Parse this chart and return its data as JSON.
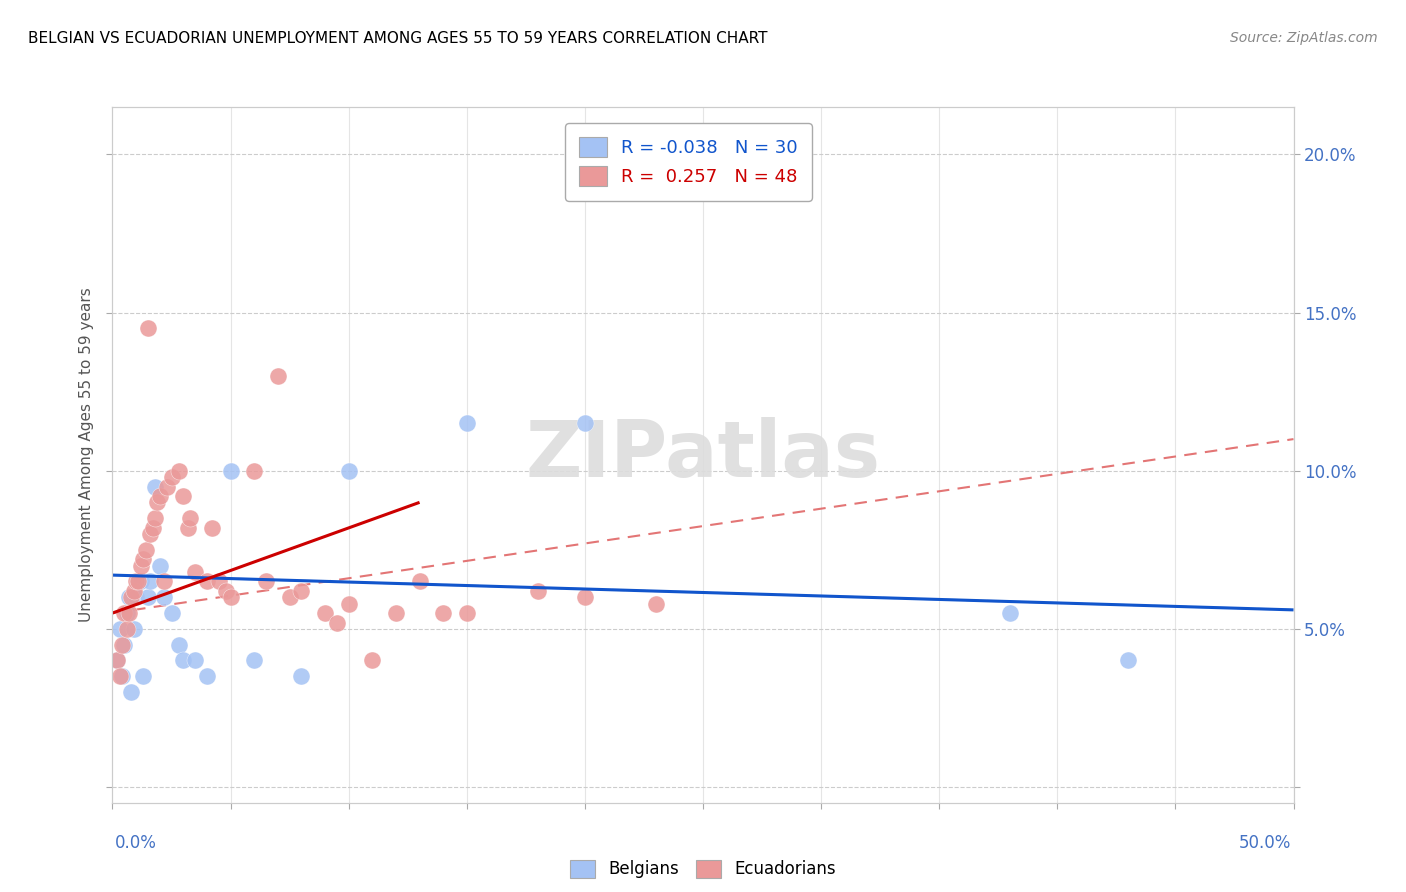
{
  "title": "BELGIAN VS ECUADORIAN UNEMPLOYMENT AMONG AGES 55 TO 59 YEARS CORRELATION CHART",
  "source": "Source: ZipAtlas.com",
  "ylabel": "Unemployment Among Ages 55 to 59 years",
  "xlim": [
    0,
    0.5
  ],
  "ylim": [
    -0.005,
    0.215
  ],
  "legend_blue_r": "R = -0.038",
  "legend_blue_n": "N = 30",
  "legend_pink_r": "R =  0.257",
  "legend_pink_n": "N = 48",
  "blue_color": "#a4c2f4",
  "pink_color": "#ea9999",
  "blue_line_color": "#1155cc",
  "pink_line_color": "#cc0000",
  "blue_dash_color": "#a4c2f4",
  "pink_dash_color": "#e06666",
  "watermark": "ZIPatlas",
  "belgians_x": [
    0.002,
    0.003,
    0.004,
    0.005,
    0.006,
    0.007,
    0.008,
    0.009,
    0.01,
    0.011,
    0.012,
    0.013,
    0.015,
    0.016,
    0.018,
    0.02,
    0.022,
    0.025,
    0.028,
    0.03,
    0.035,
    0.04,
    0.05,
    0.06,
    0.08,
    0.1,
    0.15,
    0.2,
    0.38,
    0.43
  ],
  "belgians_y": [
    0.04,
    0.05,
    0.035,
    0.045,
    0.055,
    0.06,
    0.03,
    0.05,
    0.06,
    0.065,
    0.065,
    0.035,
    0.06,
    0.065,
    0.095,
    0.07,
    0.06,
    0.055,
    0.045,
    0.04,
    0.04,
    0.035,
    0.1,
    0.04,
    0.035,
    0.1,
    0.115,
    0.115,
    0.055,
    0.04
  ],
  "ecuadorians_x": [
    0.002,
    0.003,
    0.004,
    0.005,
    0.006,
    0.007,
    0.008,
    0.009,
    0.01,
    0.011,
    0.012,
    0.013,
    0.014,
    0.015,
    0.016,
    0.017,
    0.018,
    0.019,
    0.02,
    0.022,
    0.023,
    0.025,
    0.028,
    0.03,
    0.032,
    0.033,
    0.035,
    0.04,
    0.042,
    0.045,
    0.048,
    0.05,
    0.06,
    0.065,
    0.07,
    0.075,
    0.08,
    0.09,
    0.095,
    0.1,
    0.11,
    0.12,
    0.13,
    0.14,
    0.15,
    0.18,
    0.2,
    0.23
  ],
  "ecuadorians_y": [
    0.04,
    0.035,
    0.045,
    0.055,
    0.05,
    0.055,
    0.06,
    0.062,
    0.065,
    0.065,
    0.07,
    0.072,
    0.075,
    0.145,
    0.08,
    0.082,
    0.085,
    0.09,
    0.092,
    0.065,
    0.095,
    0.098,
    0.1,
    0.092,
    0.082,
    0.085,
    0.068,
    0.065,
    0.082,
    0.065,
    0.062,
    0.06,
    0.1,
    0.065,
    0.13,
    0.06,
    0.062,
    0.055,
    0.052,
    0.058,
    0.04,
    0.055,
    0.065,
    0.055,
    0.055,
    0.062,
    0.06,
    0.058
  ]
}
